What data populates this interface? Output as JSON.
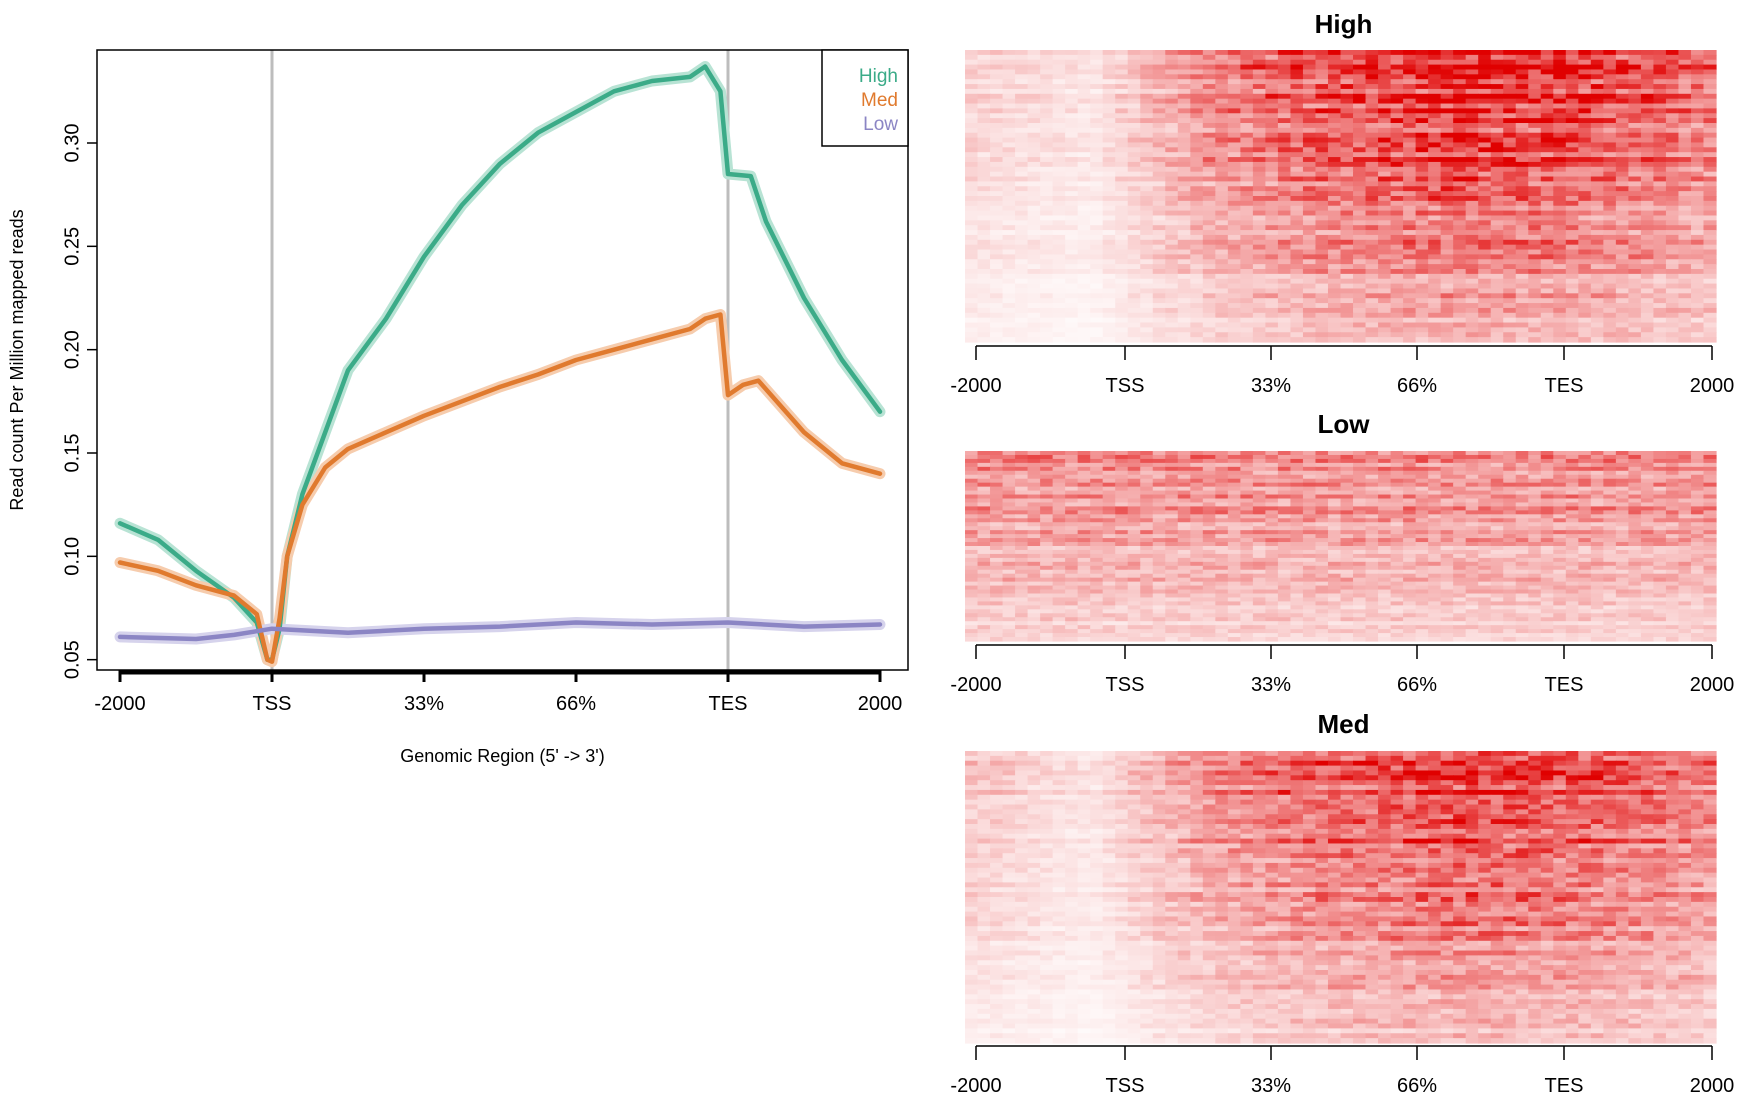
{
  "colors": {
    "high": "#3bab88",
    "high_band": "#b8e3d4",
    "med": "#e07a2e",
    "med_band": "#f6ccad",
    "low": "#8b85c4",
    "low_band": "#d6d3ec",
    "tss_tes_line": "#bdbdbd",
    "heat_max": "#e00000"
  },
  "chart_data": [
    {
      "type": "line",
      "title": "",
      "xlabel": "Genomic Region (5' -> 3')",
      "ylabel": "Read count Per Million mapped reads",
      "x_positions": [
        -1,
        0,
        1,
        2,
        3,
        4
      ],
      "x_tick_labels": [
        "-2000",
        "TSS",
        "33%",
        "66%",
        "TES",
        "2000"
      ],
      "xlim": [
        -1,
        4
      ],
      "ylim": [
        0.045,
        0.345
      ],
      "y_ticks": [
        0.05,
        0.1,
        0.15,
        0.2,
        0.25,
        0.3
      ],
      "y_tick_labels": [
        "0.05",
        "0.10",
        "0.15",
        "0.20",
        "0.25",
        "0.30"
      ],
      "vertical_lines_at": [
        0,
        3
      ],
      "legend": {
        "placement": "top-right",
        "entries": [
          "High",
          "Med",
          "Low"
        ]
      },
      "series": [
        {
          "name": "High",
          "x": [
            -1,
            -0.75,
            -0.5,
            -0.25,
            -0.1,
            -0.03,
            0,
            0.05,
            0.1,
            0.2,
            0.35,
            0.5,
            0.75,
            1,
            1.25,
            1.5,
            1.75,
            2,
            2.25,
            2.5,
            2.75,
            2.85,
            2.95,
            3,
            3.15,
            3.25,
            3.5,
            3.75,
            4
          ],
          "y": [
            0.116,
            0.108,
            0.093,
            0.08,
            0.068,
            0.05,
            0.05,
            0.065,
            0.1,
            0.13,
            0.16,
            0.19,
            0.215,
            0.245,
            0.27,
            0.29,
            0.305,
            0.315,
            0.325,
            0.33,
            0.332,
            0.337,
            0.325,
            0.285,
            0.284,
            0.262,
            0.225,
            0.195,
            0.17
          ]
        },
        {
          "name": "Med",
          "x": [
            -1,
            -0.75,
            -0.5,
            -0.25,
            -0.1,
            -0.03,
            0,
            0.05,
            0.1,
            0.2,
            0.35,
            0.5,
            0.75,
            1,
            1.25,
            1.5,
            1.75,
            2,
            2.25,
            2.5,
            2.75,
            2.85,
            2.95,
            3,
            3.1,
            3.2,
            3.5,
            3.75,
            4
          ],
          "y": [
            0.097,
            0.093,
            0.086,
            0.081,
            0.072,
            0.05,
            0.049,
            0.07,
            0.1,
            0.125,
            0.143,
            0.152,
            0.16,
            0.168,
            0.175,
            0.182,
            0.188,
            0.195,
            0.2,
            0.205,
            0.21,
            0.215,
            0.217,
            0.178,
            0.183,
            0.185,
            0.16,
            0.145,
            0.14
          ]
        },
        {
          "name": "Low",
          "x": [
            -1,
            -0.5,
            -0.25,
            0,
            0.5,
            1,
            1.5,
            2,
            2.5,
            3,
            3.5,
            4
          ],
          "y": [
            0.061,
            0.06,
            0.062,
            0.065,
            0.063,
            0.065,
            0.066,
            0.068,
            0.067,
            0.068,
            0.066,
            0.067
          ]
        }
      ]
    },
    {
      "type": "heatmap",
      "title": "High",
      "x_tick_labels": [
        "-2000",
        "TSS",
        "33%",
        "66%",
        "TES",
        "2000"
      ],
      "column_regions": [
        "upstream",
        "gene body",
        "downstream"
      ],
      "mean_intensity_profile": [
        0.2,
        0.12,
        0.55,
        0.8,
        0.95,
        0.85,
        0.6
      ],
      "row_gradient": "dense at top, fading toward bottom"
    },
    {
      "type": "heatmap",
      "title": "Low",
      "x_tick_labels": [
        "-2000",
        "TSS",
        "33%",
        "66%",
        "TES",
        "2000"
      ],
      "column_regions": [
        "upstream",
        "gene body",
        "downstream"
      ],
      "mean_intensity_profile": [
        0.5,
        0.5,
        0.5,
        0.5,
        0.5,
        0.5,
        0.5
      ],
      "row_gradient": "uniform across columns, fading toward bottom"
    },
    {
      "type": "heatmap",
      "title": "Med",
      "x_tick_labels": [
        "-2000",
        "TSS",
        "33%",
        "66%",
        "TES",
        "2000"
      ],
      "column_regions": [
        "upstream",
        "gene body",
        "downstream"
      ],
      "mean_intensity_profile": [
        0.25,
        0.12,
        0.5,
        0.7,
        0.85,
        0.75,
        0.55
      ],
      "row_gradient": "dense at top, fading toward bottom"
    }
  ]
}
